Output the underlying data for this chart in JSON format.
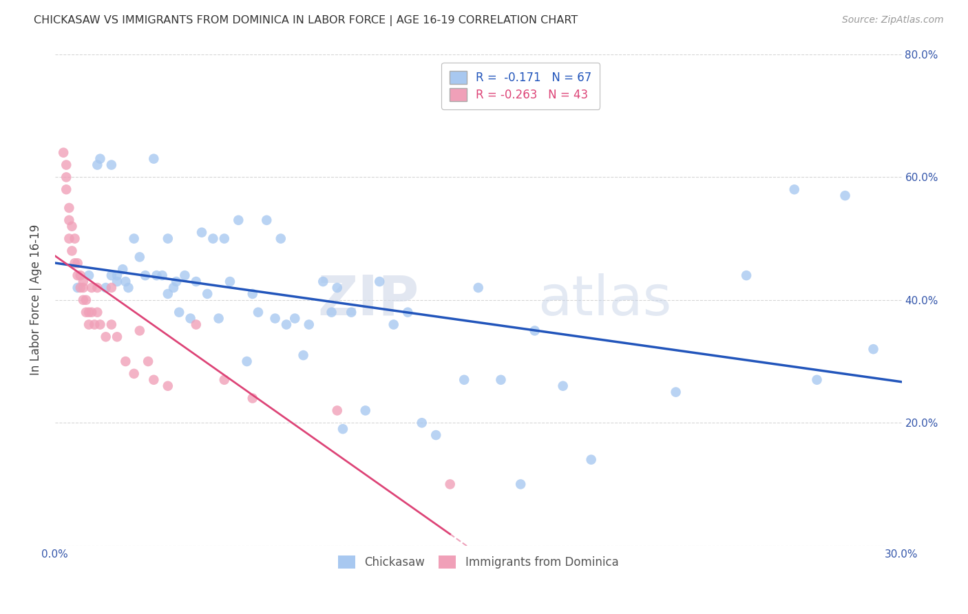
{
  "title": "CHICKASAW VS IMMIGRANTS FROM DOMINICA IN LABOR FORCE | AGE 16-19 CORRELATION CHART",
  "source": "Source: ZipAtlas.com",
  "ylabel": "In Labor Force | Age 16-19",
  "xmin": 0.0,
  "xmax": 0.3,
  "ymin": 0.0,
  "ymax": 0.8,
  "yticks": [
    0.0,
    0.2,
    0.4,
    0.6,
    0.8
  ],
  "xticks": [
    0.0,
    0.05,
    0.1,
    0.15,
    0.2,
    0.25,
    0.3
  ],
  "background_color": "#ffffff",
  "grid_color": "#cccccc",
  "series1_label": "Chickasaw",
  "series1_color": "#a8c8f0",
  "series1_R": "-0.171",
  "series1_N": "67",
  "series1_line_color": "#2255bb",
  "series2_label": "Immigrants from Dominica",
  "series2_color": "#f0a0b8",
  "series2_R": "-0.263",
  "series2_N": "43",
  "series2_line_color": "#dd4477",
  "watermark_zip": "ZIP",
  "watermark_atlas": "atlas",
  "chickasaw_x": [
    0.008,
    0.012,
    0.015,
    0.016,
    0.018,
    0.02,
    0.02,
    0.022,
    0.022,
    0.024,
    0.025,
    0.026,
    0.028,
    0.03,
    0.032,
    0.035,
    0.036,
    0.038,
    0.04,
    0.04,
    0.042,
    0.043,
    0.044,
    0.046,
    0.048,
    0.05,
    0.052,
    0.054,
    0.056,
    0.058,
    0.06,
    0.062,
    0.065,
    0.068,
    0.07,
    0.072,
    0.075,
    0.078,
    0.08,
    0.082,
    0.085,
    0.088,
    0.09,
    0.095,
    0.098,
    0.1,
    0.102,
    0.105,
    0.11,
    0.115,
    0.12,
    0.125,
    0.13,
    0.135,
    0.145,
    0.15,
    0.158,
    0.165,
    0.17,
    0.18,
    0.19,
    0.22,
    0.245,
    0.262,
    0.27,
    0.28,
    0.29
  ],
  "chickasaw_y": [
    0.42,
    0.44,
    0.62,
    0.63,
    0.42,
    0.62,
    0.44,
    0.44,
    0.43,
    0.45,
    0.43,
    0.42,
    0.5,
    0.47,
    0.44,
    0.63,
    0.44,
    0.44,
    0.5,
    0.41,
    0.42,
    0.43,
    0.38,
    0.44,
    0.37,
    0.43,
    0.51,
    0.41,
    0.5,
    0.37,
    0.5,
    0.43,
    0.53,
    0.3,
    0.41,
    0.38,
    0.53,
    0.37,
    0.5,
    0.36,
    0.37,
    0.31,
    0.36,
    0.43,
    0.38,
    0.42,
    0.19,
    0.38,
    0.22,
    0.43,
    0.36,
    0.38,
    0.2,
    0.18,
    0.27,
    0.42,
    0.27,
    0.1,
    0.35,
    0.26,
    0.14,
    0.25,
    0.44,
    0.58,
    0.27,
    0.57,
    0.32
  ],
  "dominica_x": [
    0.003,
    0.004,
    0.004,
    0.004,
    0.005,
    0.005,
    0.005,
    0.006,
    0.006,
    0.007,
    0.007,
    0.008,
    0.008,
    0.009,
    0.009,
    0.01,
    0.01,
    0.01,
    0.011,
    0.011,
    0.012,
    0.012,
    0.013,
    0.013,
    0.014,
    0.015,
    0.015,
    0.016,
    0.018,
    0.02,
    0.02,
    0.022,
    0.025,
    0.028,
    0.03,
    0.033,
    0.035,
    0.04,
    0.05,
    0.06,
    0.07,
    0.1,
    0.14
  ],
  "dominica_y": [
    0.64,
    0.62,
    0.6,
    0.58,
    0.55,
    0.53,
    0.5,
    0.52,
    0.48,
    0.5,
    0.46,
    0.46,
    0.44,
    0.44,
    0.42,
    0.43,
    0.42,
    0.4,
    0.4,
    0.38,
    0.38,
    0.36,
    0.42,
    0.38,
    0.36,
    0.42,
    0.38,
    0.36,
    0.34,
    0.42,
    0.36,
    0.34,
    0.3,
    0.28,
    0.35,
    0.3,
    0.27,
    0.26,
    0.36,
    0.27,
    0.24,
    0.22,
    0.1
  ]
}
